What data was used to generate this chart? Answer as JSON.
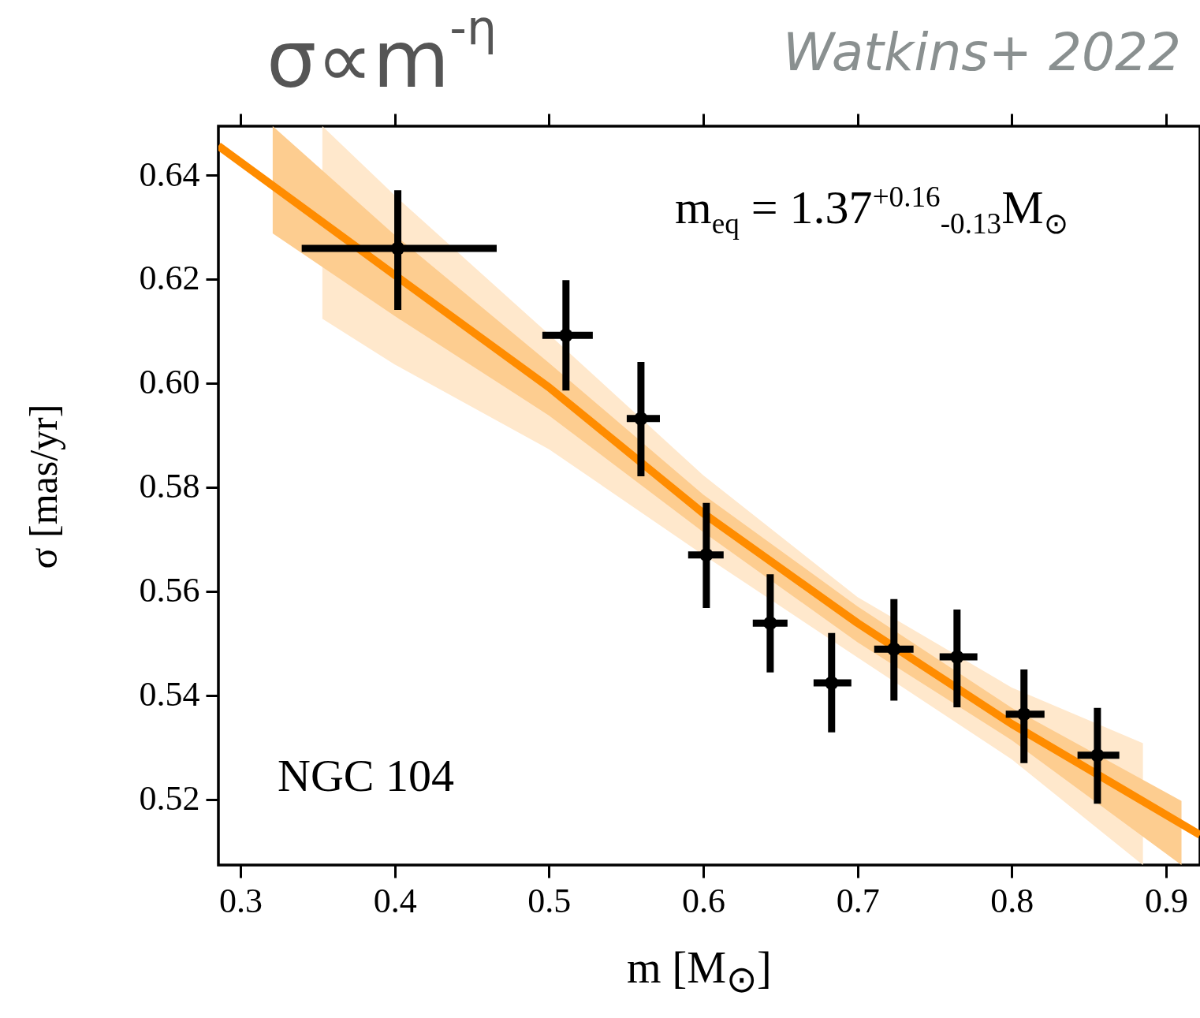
{
  "chart_data": {
    "type": "scatter",
    "title": "σ∝m$^{-η}$",
    "xlabel": "m [M$_{⊙}$]",
    "ylabel": "σ [mas/yr]",
    "annotations": [
      "Watkins+ 2022",
      "m$_{eq}$ = 1.37$^{+0.16}$$_{-0.13}$M$_{⊙}$",
      "NGC 104"
    ],
    "marker": "circle",
    "xlim": [
      0.2857,
      0.922
    ],
    "xticks": [
      0.3,
      0.4,
      0.5,
      0.6,
      0.7,
      0.8,
      0.9
    ],
    "ylim": [
      0.5074,
      0.6494
    ],
    "yticks": [
      0.52,
      0.54,
      0.56,
      0.58,
      {
        "value": 0.6,
        "label": "0.60"
      },
      0.62,
      0.64
    ],
    "series": [
      {
        "type": "line",
        "color": "#ffe8cc",
        "marker": "none",
        "x": [
          0.3531,
          0.4,
          0.5,
          0.6,
          0.7,
          0.8,
          0.885
        ],
        "values": [
          null,
          null,
          null,
          null,
          null,
          null,
          null
        ],
        "lower": [
          0.6124,
          0.6036,
          0.5873,
          0.567,
          0.5473,
          0.5277,
          0.5074
        ],
        "upper": [
          0.6494,
          0.6361,
          0.6094,
          0.5823,
          0.5589,
          0.5415,
          0.5308
        ]
      },
      {
        "type": "line",
        "color": "#fdcd90",
        "marker": "none",
        "x": [
          0.3209,
          0.4,
          0.5,
          0.6,
          0.7,
          0.8,
          0.91
        ],
        "values": [
          null,
          null,
          null,
          null,
          null,
          null,
          null
        ],
        "lower": [
          0.6288,
          0.6129,
          0.5938,
          0.5714,
          0.5502,
          0.5314,
          0.5074
        ],
        "upper": [
          0.6494,
          0.6285,
          0.6039,
          0.5786,
          0.5571,
          0.5376,
          0.5197
        ]
      },
      {
        "type": "line",
        "color": "#ff8c00",
        "marker": "none",
        "x": [
          0.2857,
          0.4,
          0.5,
          0.6,
          0.7,
          0.8,
          0.922
        ],
        "values": [
          0.6456,
          0.6208,
          0.5992,
          0.575,
          0.5539,
          0.5345,
          0.5132
        ]
      },
      {
        "color": "#000000",
        "x": [
          0.402,
          0.511,
          0.5596,
          0.602,
          0.6434,
          0.6832,
          0.7236,
          0.7645,
          0.8079,
          0.8555
        ],
        "values": [
          0.6259,
          0.6092,
          0.5932,
          0.567,
          0.5539,
          0.5424,
          0.5489,
          0.5474,
          0.5364,
          0.5285
        ],
        "errors": [
          [
            0.6141,
            0.6371
          ],
          [
            0.5986,
            0.6198
          ],
          [
            0.5821,
            0.6041
          ],
          [
            0.5568,
            0.577
          ],
          [
            0.5444,
            0.5633
          ],
          [
            0.5329,
            0.552
          ],
          [
            0.539,
            0.5585
          ],
          [
            0.5377,
            0.5565
          ],
          [
            0.527,
            0.545
          ],
          [
            0.5192,
            0.5376
          ]
        ],
        "xerrors": [
          [
            0.3397,
            0.4661
          ],
          [
            0.4957,
            0.5284
          ],
          [
            0.5504,
            0.5719
          ],
          [
            0.5902,
            0.6132
          ],
          [
            0.6321,
            0.6546
          ],
          [
            0.6715,
            0.696
          ],
          [
            0.7108,
            0.7363
          ],
          [
            0.7532,
            0.7777
          ],
          [
            0.7961,
            0.8212
          ],
          [
            0.8426,
            0.8697
          ]
        ]
      }
    ]
  }
}
